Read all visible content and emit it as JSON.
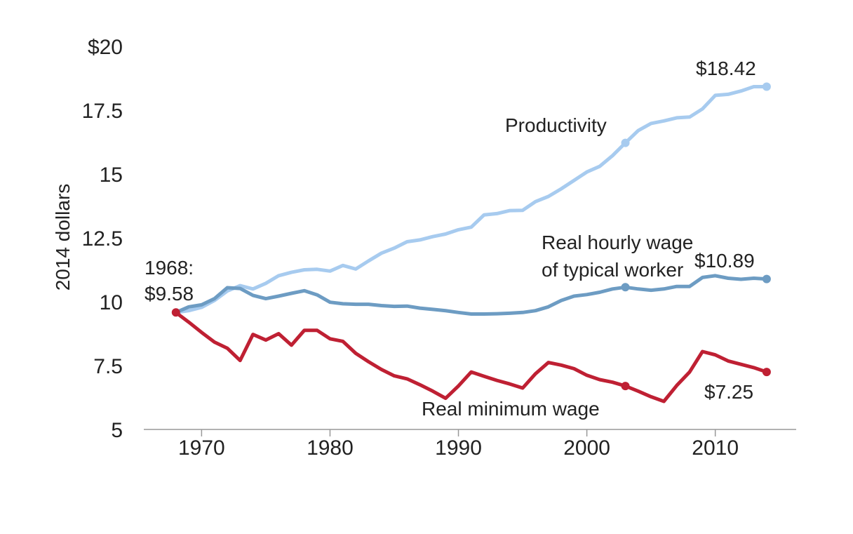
{
  "chart_data": {
    "type": "line",
    "title": "",
    "xlabel": "",
    "ylabel": "2014 dollars",
    "xlim": [
      1965.5,
      2016.3
    ],
    "ylim": [
      5,
      20
    ],
    "x_ticks": [
      1970,
      1980,
      1990,
      2000,
      2010
    ],
    "y_ticks": [
      {
        "value": 5,
        "label": "5"
      },
      {
        "value": 7.5,
        "label": "7.5"
      },
      {
        "value": 10,
        "label": "10"
      },
      {
        "value": 12.5,
        "label": "12.5"
      },
      {
        "value": 15,
        "label": "15"
      },
      {
        "value": 17.5,
        "label": "17.5"
      },
      {
        "value": 20,
        "label": "$20"
      }
    ],
    "grid": false,
    "x": [
      1968,
      1969,
      1970,
      1971,
      1972,
      1973,
      1974,
      1975,
      1976,
      1977,
      1978,
      1979,
      1980,
      1981,
      1982,
      1983,
      1984,
      1985,
      1986,
      1987,
      1988,
      1989,
      1990,
      1991,
      1992,
      1993,
      1994,
      1995,
      1996,
      1997,
      1998,
      1999,
      2000,
      2001,
      2002,
      2003,
      2004,
      2005,
      2006,
      2007,
      2008,
      2009,
      2010,
      2011,
      2012,
      2013,
      2014
    ],
    "series": [
      {
        "name": "Productivity",
        "color": "#a7cbef",
        "values": [
          9.58,
          9.65,
          9.78,
          10.05,
          10.42,
          10.63,
          10.5,
          10.72,
          11.02,
          11.15,
          11.25,
          11.27,
          11.2,
          11.42,
          11.28,
          11.6,
          11.9,
          12.1,
          12.35,
          12.42,
          12.55,
          12.65,
          12.82,
          12.92,
          13.4,
          13.45,
          13.57,
          13.58,
          13.92,
          14.12,
          14.42,
          14.75,
          15.08,
          15.3,
          15.72,
          16.22,
          16.7,
          16.98,
          17.08,
          17.2,
          17.23,
          17.55,
          18.08,
          18.12,
          18.25,
          18.42,
          18.42
        ]
      },
      {
        "name": "Real hourly wage of typical worker",
        "color": "#6d9cc3",
        "values": [
          9.58,
          9.8,
          9.88,
          10.12,
          10.55,
          10.52,
          10.25,
          10.12,
          10.22,
          10.33,
          10.43,
          10.27,
          9.98,
          9.92,
          9.9,
          9.9,
          9.85,
          9.82,
          9.83,
          9.75,
          9.7,
          9.65,
          9.58,
          9.52,
          9.52,
          9.53,
          9.55,
          9.58,
          9.65,
          9.8,
          10.05,
          10.22,
          10.28,
          10.37,
          10.5,
          10.57,
          10.5,
          10.45,
          10.5,
          10.6,
          10.6,
          10.95,
          11.02,
          10.92,
          10.88,
          10.92,
          10.89
        ]
      },
      {
        "name": "Real minimum wage",
        "color": "#bf2033",
        "values": [
          9.58,
          9.2,
          8.8,
          8.42,
          8.18,
          7.7,
          8.72,
          8.5,
          8.75,
          8.3,
          8.88,
          8.88,
          8.55,
          8.45,
          7.98,
          7.65,
          7.35,
          7.1,
          6.98,
          6.75,
          6.5,
          6.22,
          6.7,
          7.25,
          7.08,
          6.92,
          6.78,
          6.62,
          7.18,
          7.62,
          7.52,
          7.38,
          7.12,
          6.95,
          6.85,
          6.7,
          6.5,
          6.28,
          6.1,
          6.72,
          7.25,
          8.05,
          7.92,
          7.68,
          7.55,
          7.42,
          7.25
        ]
      }
    ],
    "markers": [
      {
        "series": 0,
        "x": 2003,
        "y": 16.22
      },
      {
        "series": 0,
        "x": 2014,
        "y": 18.42
      },
      {
        "series": 1,
        "x": 2003,
        "y": 10.57
      },
      {
        "series": 1,
        "x": 2014,
        "y": 10.89
      },
      {
        "series": 2,
        "x": 1968,
        "y": 9.58
      },
      {
        "series": 2,
        "x": 2003,
        "y": 6.7
      },
      {
        "series": 2,
        "x": 2014,
        "y": 7.25
      }
    ],
    "annotations": {
      "start_year": "1968:",
      "start_value": "$9.58",
      "productivity_label": "Productivity",
      "productivity_end": "$18.42",
      "wage_label_line1": "Real hourly wage",
      "wage_label_line2": "of typical worker",
      "wage_end": "$10.89",
      "minwage_label": "Real minimum wage",
      "minwage_end": "$7.25"
    }
  }
}
